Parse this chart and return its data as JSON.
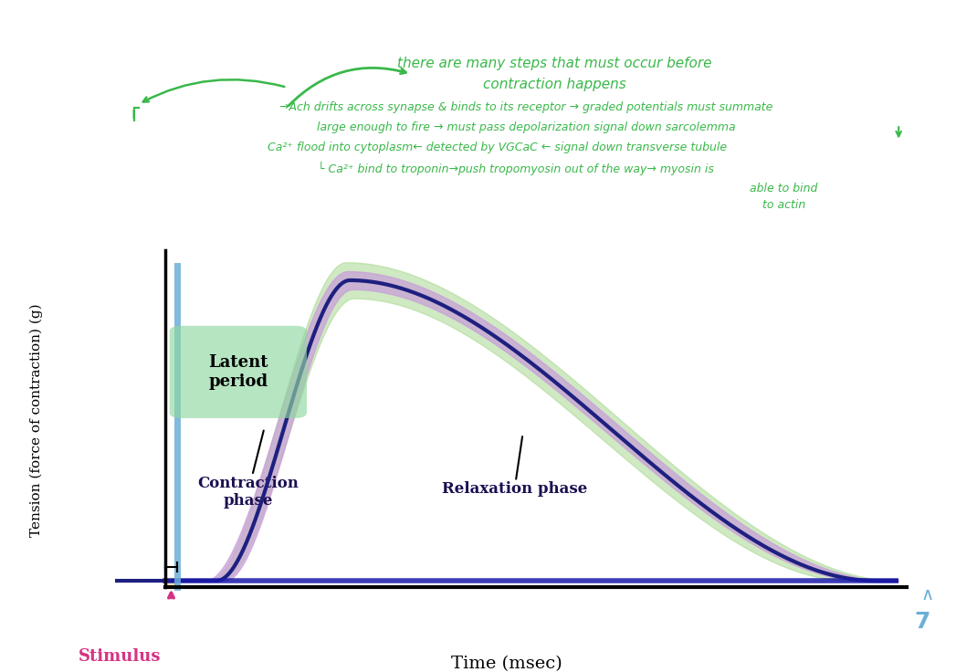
{
  "bg_color": "#ffffff",
  "axis_label_x": "Time (msec)",
  "axis_label_y": "Tension (force of contraction) (g)",
  "stimulus_label": "Stimulus",
  "latent_period_label": "Latent\nperiod",
  "contraction_phase_label": "Contraction\nphase",
  "relaxation_phase_label": "Relaxation phase",
  "curve_color_dark": "#1e2080",
  "curve_color_light_green": "#a8d890",
  "curve_color_light_purple": "#c9a0d8",
  "action_potential_color": "#6baed6",
  "stimulus_arrow_color": "#d63384",
  "latent_box_color": "#90d8a0",
  "green_annotation_color": "#3ab84a",
  "x_baseline_color": "#1a1aaa",
  "label_color": "#1a1050"
}
